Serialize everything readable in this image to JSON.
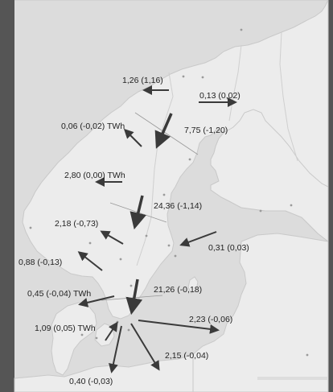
{
  "colors": {
    "sea": "#dcdcdc",
    "land": "#ececec",
    "border": "#c9c9c9",
    "arrow": "#3a3a3a",
    "frame_dark": "#555555"
  },
  "flows": {
    "f01": "1,26 (1,16)",
    "f02": "0,13 (0,02)",
    "f03": "0,06 (-0,02) TWh",
    "f04": "7,75 (-1,20)",
    "f05": "2,80 (0,00) TWh",
    "f06": "24,36 (-1,14)",
    "f07": "2,18 (-0,73)",
    "f08": "0,31 (0,03)",
    "f09": "0,88 (-0,13)",
    "f10": "21,26 (-0,18)",
    "f11": "0,45 (-0,04) TWh",
    "f12": "2,23 (-0,06)",
    "f13": "1,09 (0,05) TWh",
    "f14": "2,15 (-0,04)",
    "f15": "0,40 (-0,03)"
  }
}
